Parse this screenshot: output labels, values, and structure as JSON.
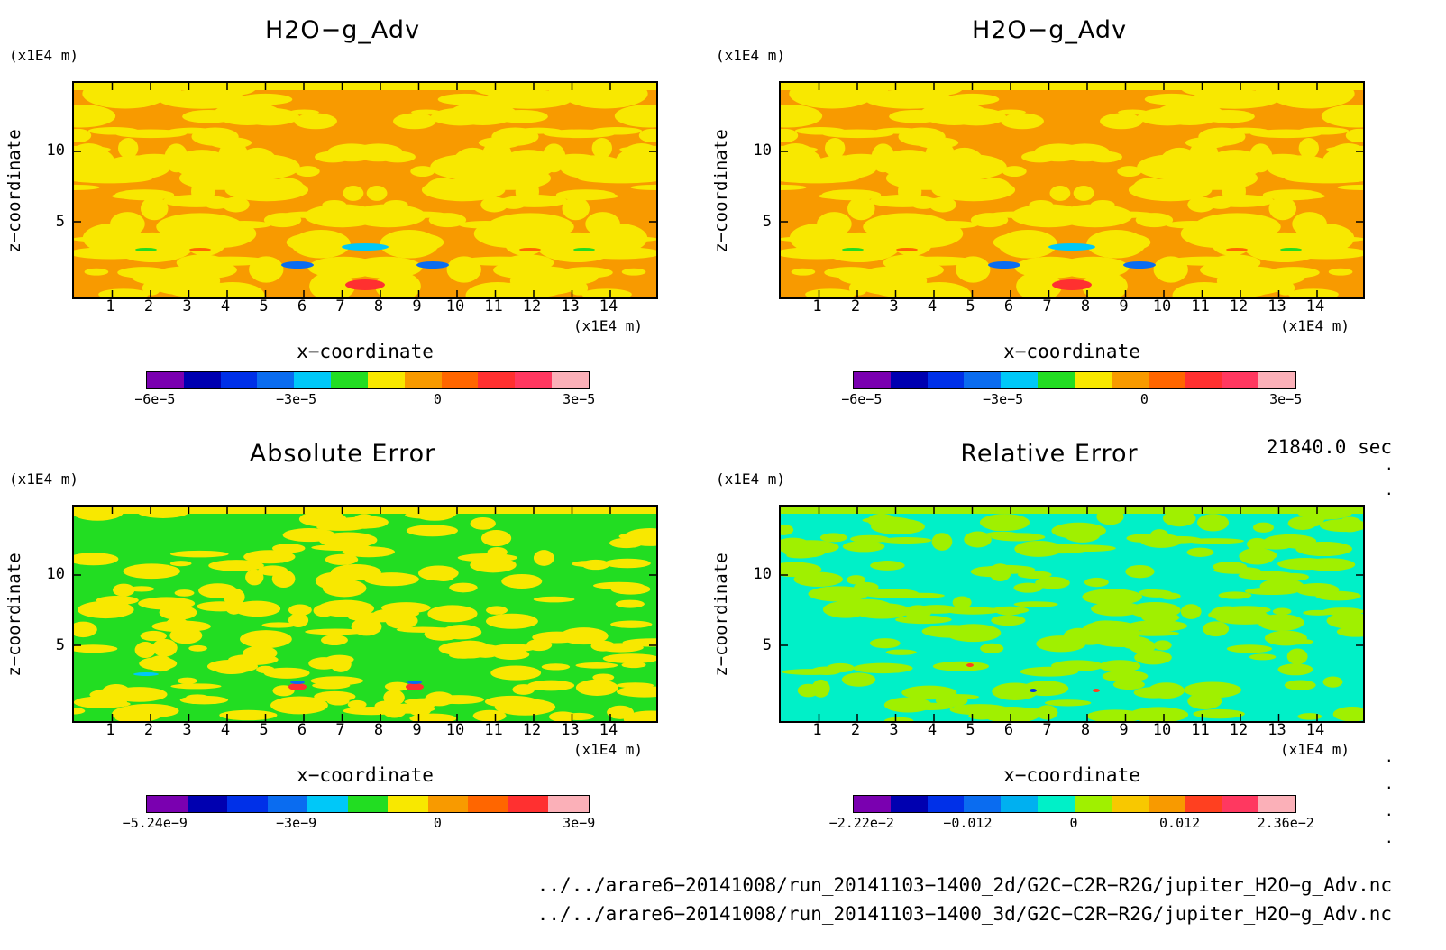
{
  "panels": [
    {
      "title": "H2O−g_Adv",
      "yunit": "(x1E4 m)",
      "xunit": "(x1E4 m)",
      "xlabel": "x−coordinate",
      "ylabel": "z−coordinate",
      "xticks": [
        "1",
        "2",
        "3",
        "4",
        "5",
        "6",
        "7",
        "8",
        "9",
        "10",
        "11",
        "12",
        "13",
        "14"
      ],
      "yticks": [
        "5",
        "10"
      ],
      "colors": [
        "#7a00b0",
        "#0000b0",
        "#0030e8",
        "#0a6cf0",
        "#00c8f8",
        "#22dd22",
        "#f8e800",
        "#f89a00",
        "#ff6600",
        "#ff3030",
        "#ff3860",
        "#fbb0b8"
      ],
      "cbar_labels": [
        "−6e−5",
        "−3e−5",
        "0",
        "3e−5"
      ],
      "bg": "#f89a00",
      "fg": "#f8e800"
    },
    {
      "title": "H2O−g_Adv",
      "yunit": "(x1E4 m)",
      "xunit": "(x1E4 m)",
      "xlabel": "x−coordinate",
      "ylabel": "z−coordinate",
      "xticks": [
        "1",
        "2",
        "3",
        "4",
        "5",
        "6",
        "7",
        "8",
        "9",
        "10",
        "11",
        "12",
        "13",
        "14"
      ],
      "yticks": [
        "5",
        "10"
      ],
      "colors": [
        "#7a00b0",
        "#0000b0",
        "#0030e8",
        "#0a6cf0",
        "#00c8f8",
        "#22dd22",
        "#f8e800",
        "#f89a00",
        "#ff6600",
        "#ff3030",
        "#ff3860",
        "#fbb0b8"
      ],
      "cbar_labels": [
        "−6e−5",
        "−3e−5",
        "0",
        "3e−5"
      ],
      "bg": "#f89a00",
      "fg": "#f8e800"
    },
    {
      "title": "Absolute Error",
      "yunit": "(x1E4 m)",
      "xunit": "(x1E4 m)",
      "xlabel": "x−coordinate",
      "ylabel": "z−coordinate",
      "xticks": [
        "1",
        "2",
        "3",
        "4",
        "5",
        "6",
        "7",
        "8",
        "9",
        "10",
        "11",
        "12",
        "13",
        "14"
      ],
      "yticks": [
        "5",
        "10"
      ],
      "colors": [
        "#7a00b0",
        "#0000b0",
        "#0030e8",
        "#0a6cf0",
        "#00c8f8",
        "#22dd22",
        "#f8e800",
        "#f89a00",
        "#ff6600",
        "#ff3030",
        "#fbb0b8"
      ],
      "cbar_labels": [
        "−5.24e−9",
        "−3e−9",
        "0",
        "3e−9"
      ],
      "bg": "#22dd22",
      "fg": "#f8e800"
    },
    {
      "title": "Relative Error",
      "yunit": "(x1E4 m)",
      "xunit": "(x1E4 m)",
      "xlabel": "x−coordinate",
      "ylabel": "z−coordinate",
      "xticks": [
        "1",
        "2",
        "3",
        "4",
        "5",
        "6",
        "7",
        "8",
        "9",
        "10",
        "11",
        "12",
        "13",
        "14"
      ],
      "yticks": [
        "5",
        "10"
      ],
      "colors": [
        "#7a00b0",
        "#0000b0",
        "#0030e8",
        "#0a6cf0",
        "#00b0f0",
        "#00f0c8",
        "#a0f000",
        "#f8c800",
        "#f89a00",
        "#ff4020",
        "#ff3860",
        "#fbb0b8"
      ],
      "cbar_labels": [
        "−2.22e−2",
        "−0.012",
        "0",
        "0.012",
        "2.36e−2"
      ],
      "bg": "#00f0c8",
      "fg": "#a0f000"
    }
  ],
  "time": "21840.0 sec",
  "files": [
    "../../arare6−20141008/run_20141103−1400_2d/G2C−C2R−R2G/jupiter_H2O−g_Adv.nc",
    "../../arare6−20141008/run_20141103−1400_3d/G2C−C2R−R2G/jupiter_H2O−g_Adv.nc"
  ]
}
